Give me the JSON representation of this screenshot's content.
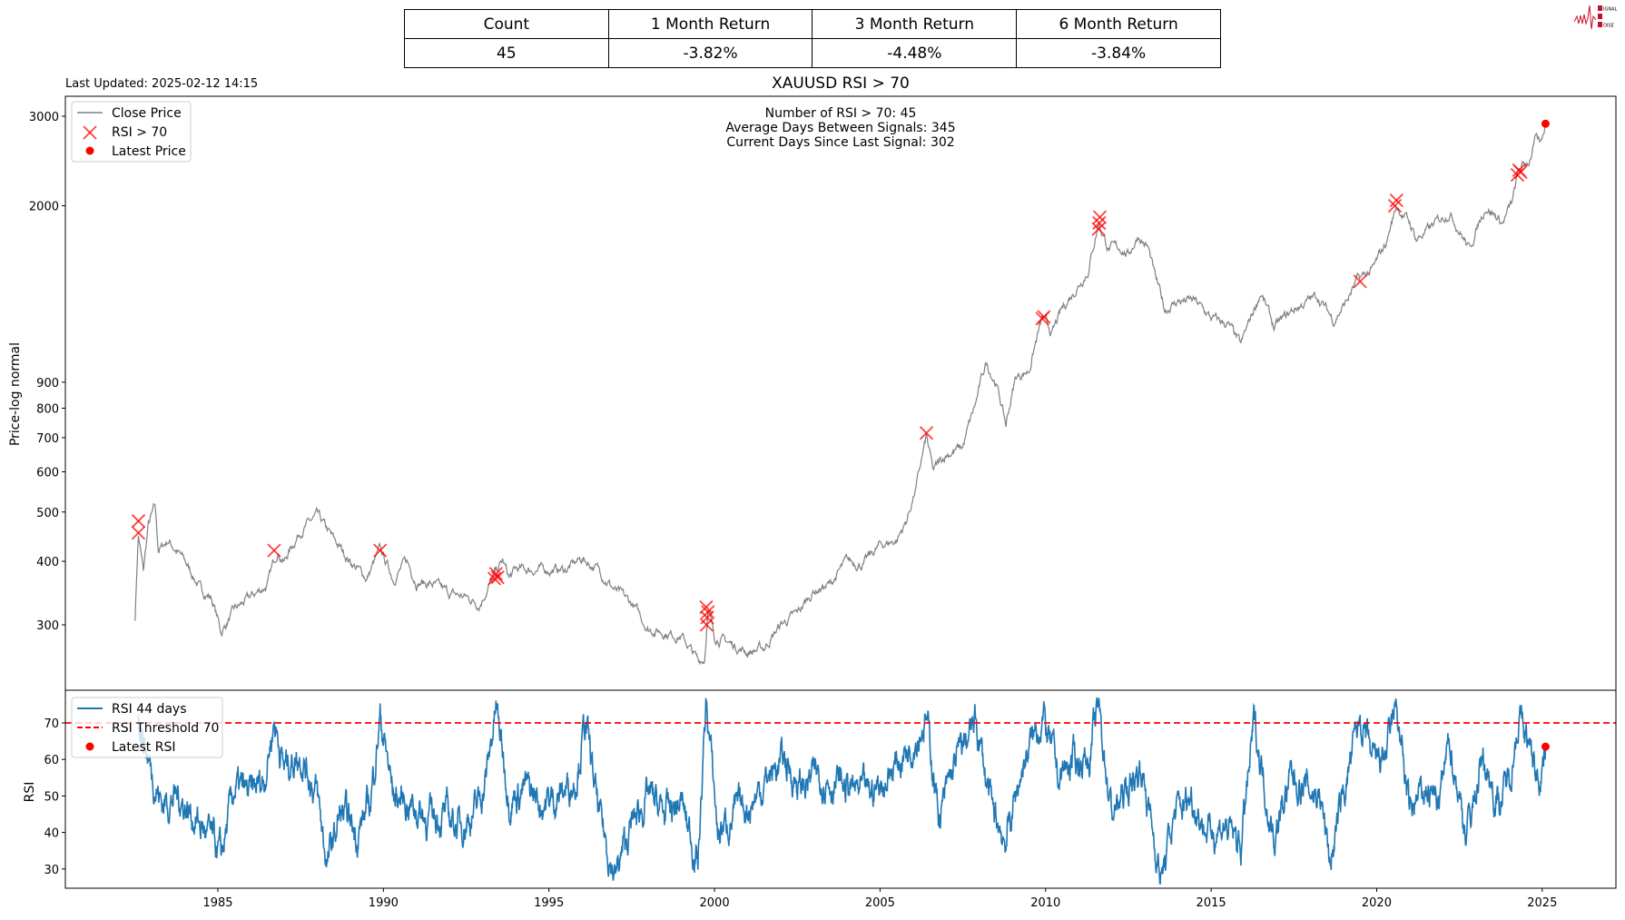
{
  "summary_table": {
    "headers": [
      "Count",
      "1 Month Return",
      "3 Month Return",
      "6 Month Return"
    ],
    "values": [
      "45",
      "-3.82%",
      "-4.48%",
      "-3.84%"
    ]
  },
  "logo": {
    "text": "SIGNAL 2 NOISE",
    "color": "#c8102e"
  },
  "last_updated": "Last Updated: 2025-02-12 14:15",
  "chart_data": [
    {
      "type": "line",
      "title": "XAUUSD RSI > 70",
      "ylabel": "Price-log normal",
      "yscale": "log",
      "ylim": [
        230,
        3300
      ],
      "xlim": [
        1980.4,
        2027.2
      ],
      "yticks": [
        300,
        400,
        500,
        600,
        700,
        800,
        900,
        2000,
        3000
      ],
      "grid": false,
      "legend_position": "top-left",
      "legend": [
        "Close Price",
        "RSI > 70",
        "Latest Price"
      ],
      "annotations": [
        "Number of RSI > 70: 45",
        "Average Days Between Signals: 345",
        "Current Days Since Last Signal: 302"
      ],
      "colors": {
        "close": "#808080",
        "signal": "#ff0000",
        "latest": "#ff0000"
      },
      "series": [
        {
          "name": "Close Price",
          "points": [
            [
              1982.5,
              310
            ],
            [
              1982.6,
              450
            ],
            [
              1982.75,
              380
            ],
            [
              1982.9,
              470
            ],
            [
              1983.1,
              510
            ],
            [
              1983.2,
              420
            ],
            [
              1983.5,
              440
            ],
            [
              1984,
              400
            ],
            [
              1984.5,
              350
            ],
            [
              1984.8,
              340
            ],
            [
              1985.1,
              290
            ],
            [
              1985.5,
              320
            ],
            [
              1986,
              340
            ],
            [
              1986.5,
              360
            ],
            [
              1986.8,
              420
            ],
            [
              1987,
              400
            ],
            [
              1987.5,
              460
            ],
            [
              1988,
              490
            ],
            [
              1988.5,
              440
            ],
            [
              1989,
              400
            ],
            [
              1989.5,
              370
            ],
            [
              1989.9,
              420
            ],
            [
              1990.3,
              370
            ],
            [
              1990.7,
              400
            ],
            [
              1991,
              365
            ],
            [
              1991.5,
              360
            ],
            [
              1992,
              345
            ],
            [
              1992.5,
              340
            ],
            [
              1992.9,
              330
            ],
            [
              1993.4,
              380
            ],
            [
              1993.6,
              400
            ],
            [
              1993.8,
              370
            ],
            [
              1994,
              385
            ],
            [
              1995,
              385
            ],
            [
              1995.5,
              385
            ],
            [
              1996,
              405
            ],
            [
              1996.5,
              385
            ],
            [
              1997,
              350
            ],
            [
              1997.5,
              330
            ],
            [
              1998,
              295
            ],
            [
              1998.5,
              290
            ],
            [
              1999,
              285
            ],
            [
              1999.5,
              255
            ],
            [
              1999.7,
              258
            ],
            [
              1999.8,
              320
            ],
            [
              2000,
              285
            ],
            [
              2000.5,
              275
            ],
            [
              2001,
              265
            ],
            [
              2001.5,
              270
            ],
            [
              2002,
              300
            ],
            [
              2002.5,
              315
            ],
            [
              2003,
              350
            ],
            [
              2003.5,
              360
            ],
            [
              2004,
              400
            ],
            [
              2004.5,
              395
            ],
            [
              2005,
              430
            ],
            [
              2005.5,
              440
            ],
            [
              2005.8,
              480
            ],
            [
              2006.1,
              560
            ],
            [
              2006.4,
              700
            ],
            [
              2006.6,
              600
            ],
            [
              2007,
              650
            ],
            [
              2007.5,
              670
            ],
            [
              2007.9,
              820
            ],
            [
              2008.2,
              980
            ],
            [
              2008.5,
              900
            ],
            [
              2008.8,
              740
            ],
            [
              2009.1,
              920
            ],
            [
              2009.5,
              950
            ],
            [
              2009.9,
              1200
            ],
            [
              2010.2,
              1120
            ],
            [
              2010.5,
              1250
            ],
            [
              2011,
              1400
            ],
            [
              2011.3,
              1500
            ],
            [
              2011.6,
              1850
            ],
            [
              2011.9,
              1650
            ],
            [
              2012.3,
              1650
            ],
            [
              2012.5,
              1600
            ],
            [
              2012.8,
              1750
            ],
            [
              2013.1,
              1650
            ],
            [
              2013.3,
              1450
            ],
            [
              2013.6,
              1250
            ],
            [
              2014,
              1300
            ],
            [
              2014.5,
              1300
            ],
            [
              2015,
              1200
            ],
            [
              2015.5,
              1170
            ],
            [
              2015.9,
              1060
            ],
            [
              2016.5,
              1350
            ],
            [
              2016.9,
              1150
            ],
            [
              2017.5,
              1250
            ],
            [
              2018.2,
              1330
            ],
            [
              2018.7,
              1190
            ],
            [
              2019.1,
              1300
            ],
            [
              2019.4,
              1420
            ],
            [
              2019.9,
              1500
            ],
            [
              2020.3,
              1700
            ],
            [
              2020.6,
              2000
            ],
            [
              2021,
              1850
            ],
            [
              2021.2,
              1720
            ],
            [
              2021.6,
              1800
            ],
            [
              2022.2,
              1950
            ],
            [
              2022.8,
              1640
            ],
            [
              2023.3,
              2000
            ],
            [
              2023.8,
              1850
            ],
            [
              2024.1,
              2030
            ],
            [
              2024.3,
              2350
            ],
            [
              2024.6,
              2450
            ],
            [
              2024.8,
              2700
            ],
            [
              2024.95,
              2620
            ],
            [
              2025.1,
              2900
            ]
          ]
        },
        {
          "name": "RSI > 70",
          "points": [
            [
              1982.6,
              480
            ],
            [
              1982.6,
              455
            ],
            [
              1986.7,
              420
            ],
            [
              1989.9,
              420
            ],
            [
              1993.35,
              370
            ],
            [
              1993.4,
              378
            ],
            [
              1993.45,
              372
            ],
            [
              1999.75,
              325
            ],
            [
              1999.8,
              318
            ],
            [
              1999.78,
              310
            ],
            [
              1999.76,
              300
            ],
            [
              2006.4,
              715
            ],
            [
              2009.9,
              1200
            ],
            [
              2009.95,
              1210
            ],
            [
              2011.6,
              1800
            ],
            [
              2011.62,
              1850
            ],
            [
              2011.64,
              1900
            ],
            [
              2019.5,
              1420
            ],
            [
              2020.55,
              2000
            ],
            [
              2020.6,
              2050
            ],
            [
              2024.25,
              2300
            ],
            [
              2024.3,
              2350
            ],
            [
              2024.35,
              2330
            ]
          ]
        },
        {
          "name": "Latest Price",
          "points": [
            [
              2025.1,
              2900
            ]
          ]
        }
      ]
    },
    {
      "type": "line",
      "ylabel": "RSI",
      "ylim": [
        25.5,
        78
      ],
      "xlim": [
        1980.4,
        2027.2
      ],
      "yticks": [
        30,
        40,
        50,
        60,
        70
      ],
      "xticks": [
        1985,
        1990,
        1995,
        2000,
        2005,
        2010,
        2015,
        2020,
        2025
      ],
      "grid": false,
      "legend_position": "top-left",
      "legend": [
        "RSI 44 days",
        "RSI Threshold 70",
        "Latest RSI"
      ],
      "colors": {
        "rsi": "#1f77b4",
        "threshold": "#ff0000",
        "latest": "#ff0000"
      },
      "threshold": 70,
      "series": [
        {
          "name": "RSI 44 days",
          "points": [
            [
              1982.6,
              73
            ],
            [
              1982.9,
              60
            ],
            [
              1983.3,
              48
            ],
            [
              1983.8,
              50
            ],
            [
              1984.3,
              44
            ],
            [
              1984.8,
              38
            ],
            [
              1985.1,
              33
            ],
            [
              1985.5,
              52
            ],
            [
              1986,
              50
            ],
            [
              1986.4,
              55
            ],
            [
              1986.7,
              71
            ],
            [
              1987,
              58
            ],
            [
              1987.5,
              62
            ],
            [
              1988,
              50
            ],
            [
              1988.3,
              31
            ],
            [
              1988.7,
              45
            ],
            [
              1989.2,
              40
            ],
            [
              1989.6,
              48
            ],
            [
              1989.9,
              72
            ],
            [
              1990.3,
              50
            ],
            [
              1990.8,
              48
            ],
            [
              1991.3,
              44
            ],
            [
              1991.8,
              45
            ],
            [
              1992.3,
              42
            ],
            [
              1992.8,
              46
            ],
            [
              1993.1,
              55
            ],
            [
              1993.4,
              74
            ],
            [
              1993.8,
              50
            ],
            [
              1994.3,
              52
            ],
            [
              1994.8,
              48
            ],
            [
              1995.3,
              50
            ],
            [
              1995.8,
              55
            ],
            [
              1996.1,
              70
            ],
            [
              1996.5,
              45
            ],
            [
              1997,
              28
            ],
            [
              1997.5,
              42
            ],
            [
              1998,
              50
            ],
            [
              1998.5,
              45
            ],
            [
              1999,
              48
            ],
            [
              1999.5,
              32
            ],
            [
              1999.75,
              76
            ],
            [
              2000.1,
              40
            ],
            [
              2000.6,
              45
            ],
            [
              2001.1,
              48
            ],
            [
              2001.6,
              55
            ],
            [
              2002.1,
              60
            ],
            [
              2002.6,
              52
            ],
            [
              2003.1,
              56
            ],
            [
              2003.6,
              54
            ],
            [
              2004.1,
              52
            ],
            [
              2004.6,
              50
            ],
            [
              2005.1,
              54
            ],
            [
              2005.6,
              60
            ],
            [
              2006.4,
              71
            ],
            [
              2006.8,
              44
            ],
            [
              2007.3,
              60
            ],
            [
              2007.9,
              70
            ],
            [
              2008.4,
              45
            ],
            [
              2008.8,
              38
            ],
            [
              2009.3,
              58
            ],
            [
              2009.9,
              72
            ],
            [
              2010.4,
              55
            ],
            [
              2010.9,
              60
            ],
            [
              2011.3,
              60
            ],
            [
              2011.6,
              74
            ],
            [
              2012,
              45
            ],
            [
              2012.5,
              52
            ],
            [
              2012.9,
              58
            ],
            [
              2013.5,
              27
            ],
            [
              2013.9,
              45
            ],
            [
              2014.4,
              50
            ],
            [
              2014.9,
              40
            ],
            [
              2015.4,
              42
            ],
            [
              2015.9,
              36
            ],
            [
              2016.3,
              70
            ],
            [
              2016.9,
              38
            ],
            [
              2017.4,
              55
            ],
            [
              2017.9,
              52
            ],
            [
              2018.3,
              50
            ],
            [
              2018.6,
              32
            ],
            [
              2019.1,
              55
            ],
            [
              2019.5,
              71
            ],
            [
              2019.9,
              58
            ],
            [
              2020.3,
              62
            ],
            [
              2020.6,
              74
            ],
            [
              2021,
              45
            ],
            [
              2021.5,
              52
            ],
            [
              2021.9,
              48
            ],
            [
              2022.2,
              65
            ],
            [
              2022.7,
              40
            ],
            [
              2023.2,
              60
            ],
            [
              2023.7,
              48
            ],
            [
              2024.0,
              55
            ],
            [
              2024.3,
              72
            ],
            [
              2024.7,
              60
            ],
            [
              2024.9,
              55
            ],
            [
              2025.1,
              63.5
            ]
          ]
        },
        {
          "name": "Latest RSI",
          "points": [
            [
              2025.1,
              63.5
            ]
          ]
        }
      ]
    }
  ]
}
